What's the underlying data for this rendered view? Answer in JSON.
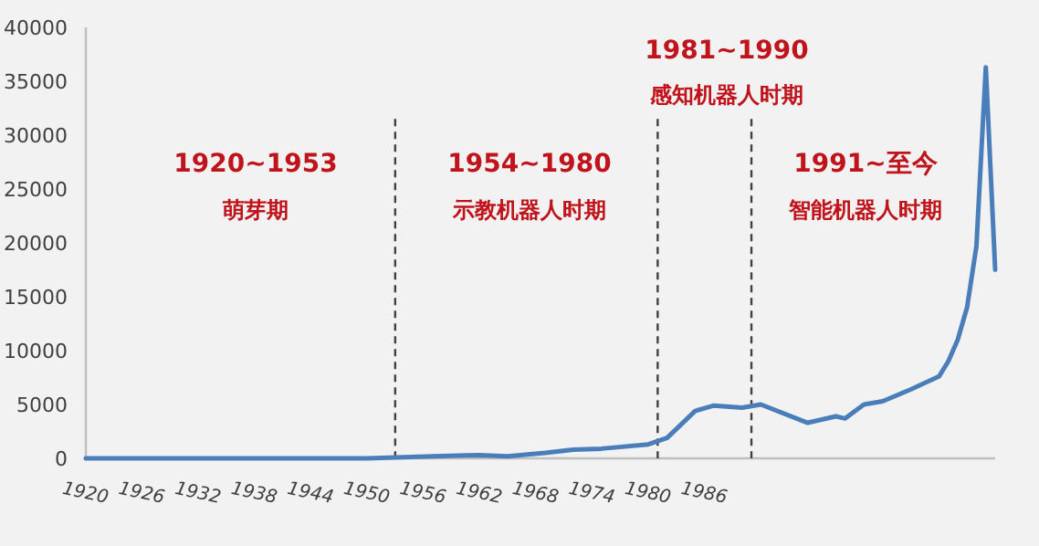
{
  "chart_data": {
    "type": "line",
    "x": [
      1920,
      1950,
      1957,
      1962,
      1965,
      1969,
      1972,
      1975,
      1980,
      1982,
      1985,
      1987,
      1990,
      1992,
      1997,
      2000,
      2001,
      2003,
      2005,
      2008,
      2010,
      2011,
      2012,
      2013,
      2014,
      2015,
      2016,
      2017
    ],
    "series": [
      {
        "color": "#4a7ebb",
        "values": [
          0,
          0,
          200,
          300,
          200,
          500,
          800,
          900,
          1300,
          1900,
          4400,
          4900,
          4700,
          5000,
          3300,
          3900,
          3700,
          5000,
          5300,
          6400,
          7200,
          7600,
          9000,
          11000,
          14000,
          19700,
          36300,
          17500
        ]
      }
    ],
    "xlim": [
      1920,
      2017
    ],
    "xticks": [
      1920,
      1926,
      1932,
      1938,
      1944,
      1950,
      1956,
      1962,
      1968,
      1974,
      1980,
      1986
    ],
    "ylim": [
      0,
      40000
    ],
    "yticks": [
      0,
      5000,
      10000,
      15000,
      20000,
      25000,
      30000,
      35000,
      40000
    ],
    "grid": false,
    "marker": "none",
    "line_style": "solid",
    "ref_lines": [
      {
        "axis": "x",
        "value": 1953,
        "line_style": "dashed",
        "color": "#404040"
      },
      {
        "axis": "x",
        "value": 1981,
        "line_style": "dashed",
        "color": "#404040"
      },
      {
        "axis": "x",
        "value": 1991,
        "line_style": "dashed",
        "color": "#404040"
      }
    ],
    "annotations": [
      "1920~1953",
      "萌芽期",
      "1954~1980",
      "示教机器人时期",
      "1981~1990",
      "感知机器人时期",
      "1991~至今",
      "智能机器人时期"
    ]
  }
}
